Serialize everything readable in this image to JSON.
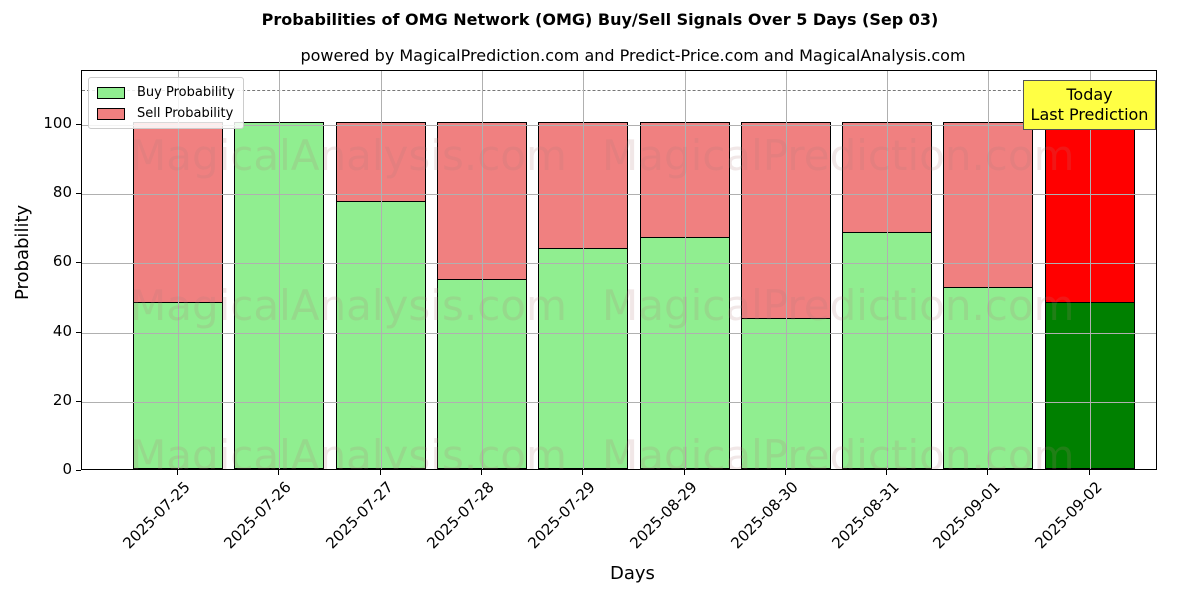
{
  "title": "Probabilities of OMG Network (OMG) Buy/Sell Signals Over 5 Days (Sep 03)",
  "subtitle": "powered by MagicalPrediction.com and Predict-Price.com and MagicalAnalysis.com",
  "xlabel": "Days",
  "ylabel": "Probability",
  "legend": {
    "buy": "Buy Probability",
    "sell": "Sell Probability"
  },
  "annotation": {
    "line1": "Today",
    "line2": "Last Prediction"
  },
  "watermarks": [
    "MagicalAnalysis.com",
    "MagicalPrediction.com"
  ],
  "yticks": [
    "0",
    "20",
    "40",
    "60",
    "80",
    "100"
  ],
  "colors": {
    "buy": "#90ee90",
    "sell": "#f08080",
    "today_buy": "#008000",
    "today_sell": "#ff0000",
    "annotation_bg": "#ffff44"
  },
  "chart_data": {
    "type": "bar",
    "stacked": true,
    "title": "Probabilities of OMG Network (OMG) Buy/Sell Signals Over 5 Days (Sep 03)",
    "subtitle": "powered by MagicalPrediction.com and Predict-Price.com and MagicalAnalysis.com",
    "xlabel": "Days",
    "ylabel": "Probability",
    "ylim": [
      0,
      115
    ],
    "grid": true,
    "legend_position": "upper left",
    "reference_line": {
      "y": 110,
      "style": "dashed"
    },
    "categories": [
      "2025-07-25",
      "2025-07-26",
      "2025-07-27",
      "2025-07-28",
      "2025-07-29",
      "2025-08-29",
      "2025-08-30",
      "2025-08-31",
      "2025-09-01",
      "2025-09-02"
    ],
    "series": [
      {
        "name": "Buy Probability",
        "values": [
          48.0,
          100.0,
          77.2,
          54.6,
          63.6,
          66.8,
          43.4,
          68.2,
          52.3,
          48.0
        ]
      },
      {
        "name": "Sell Probability",
        "values": [
          52.0,
          0.0,
          22.8,
          45.4,
          36.4,
          33.2,
          56.6,
          31.8,
          47.7,
          52.0
        ]
      }
    ],
    "annotations": [
      {
        "text": "Today\nLast Prediction",
        "x": "2025-09-02"
      }
    ]
  }
}
